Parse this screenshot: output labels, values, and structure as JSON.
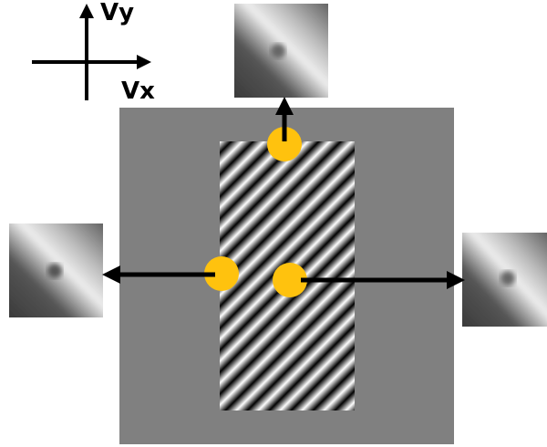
{
  "axes": {
    "vertical_label": "Vy",
    "horizontal_label": "Vx"
  }
}
